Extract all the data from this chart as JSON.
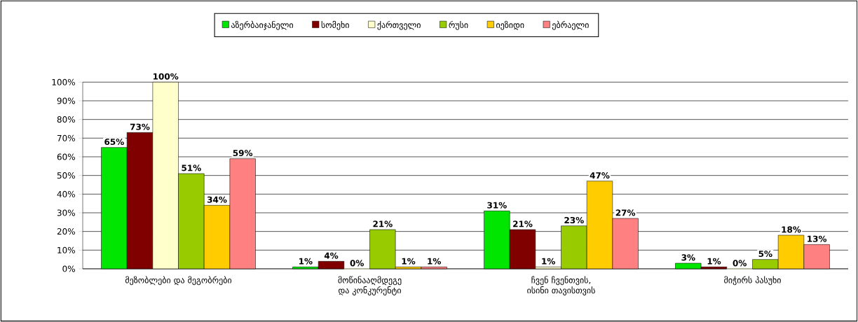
{
  "chart_data": {
    "type": "bar",
    "categories": [
      "მეზობლები და მეგობრები",
      "მოწინააღმდეგე და კონკურენტი",
      "ჩვენ ჩვენთვის, ისინი თავისთვის",
      "მიჭირს პასუხი"
    ],
    "series": [
      {
        "name": "აზერბაიჯანელი",
        "color": "#00e600",
        "values": [
          65,
          1,
          31,
          3
        ],
        "value_labels": [
          "65%",
          "1%",
          "31%",
          "3%"
        ]
      },
      {
        "name": "სომეხი",
        "color": "#800000",
        "values": [
          73,
          4,
          21,
          1
        ],
        "value_labels": [
          "73%",
          "4%",
          "21%",
          "1%"
        ]
      },
      {
        "name": "ქართველი",
        "color": "#ffffcc",
        "values": [
          100,
          0,
          1,
          0
        ],
        "value_labels": [
          "100%",
          "0%",
          "1%",
          "0%"
        ]
      },
      {
        "name": "რუსი",
        "color": "#99cc00",
        "values": [
          51,
          21,
          23,
          5
        ],
        "value_labels": [
          "51%",
          "21%",
          "23%",
          "5%"
        ]
      },
      {
        "name": "იეზიდი",
        "color": "#ffcc00",
        "values": [
          34,
          1,
          47,
          18
        ],
        "value_labels": [
          "34%",
          "1%",
          "47%",
          "18%"
        ]
      },
      {
        "name": "ებრაელი",
        "color": "#ff8080",
        "values": [
          59,
          1,
          27,
          13
        ],
        "value_labels": [
          "59%",
          "1%",
          "27%",
          "13%"
        ]
      }
    ],
    "ylim": [
      0,
      100
    ],
    "yticks": [
      {
        "value": 0,
        "label": "0%"
      },
      {
        "value": 10,
        "label": "10%"
      },
      {
        "value": 20,
        "label": "20%"
      },
      {
        "value": 30,
        "label": "30%"
      },
      {
        "value": 40,
        "label": "40%"
      },
      {
        "value": 50,
        "label": "50%"
      },
      {
        "value": 60,
        "label": "60%"
      },
      {
        "value": 70,
        "label": "70%"
      },
      {
        "value": 80,
        "label": "80%"
      },
      {
        "value": 90,
        "label": "90%"
      },
      {
        "value": 100,
        "label": "100%"
      }
    ],
    "grid": "y",
    "legend": "top"
  }
}
